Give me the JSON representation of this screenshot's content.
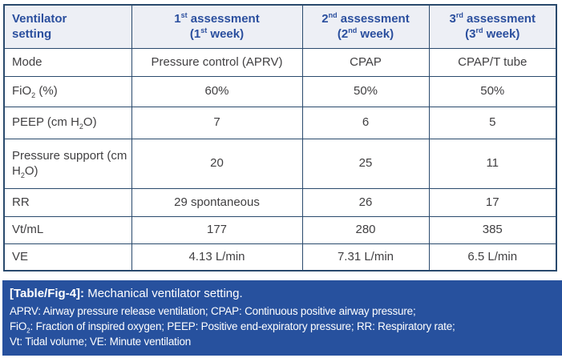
{
  "colors": {
    "border": "#2a4a6d",
    "header_bg": "#edeff5",
    "header_text": "#2b4f9e",
    "body_text": "#414042",
    "caption_bar_bg": "#27519e",
    "caption_text": "#ffffff"
  },
  "table": {
    "columns": [
      "Ventilator\nsetting",
      "1^st^ assessment\n(1^st^ week)",
      "2^nd^ assessment\n(2^nd^ week)",
      "3^rd^ assessment\n(3^rd^ week)"
    ],
    "rows": [
      {
        "label": "Mode",
        "values": [
          "Pressure control (APRV)",
          "CPAP",
          "CPAP/T tube"
        ]
      },
      {
        "label": "FiO~2~ (%)",
        "values": [
          "60%",
          "50%",
          "50%"
        ]
      },
      {
        "label": "PEEP (cm H~2~O)",
        "values": [
          "7",
          "6",
          "5"
        ]
      },
      {
        "label": "Pressure support (cm H~2~O)",
        "values": [
          "20",
          "25",
          "11"
        ]
      },
      {
        "label": "RR",
        "values": [
          "29 spontaneous",
          "26",
          "17"
        ]
      },
      {
        "label": "Vt/mL",
        "values": [
          "177",
          "280",
          "385"
        ]
      },
      {
        "label": "VE",
        "values": [
          "4.13 L/min",
          "7.31 L/min",
          "6.5 L/min"
        ]
      }
    ]
  },
  "caption": {
    "tag": "[Table/Fig-4]:",
    "text": "Mechanical ventilator setting."
  },
  "footnote": "APRV: Airway pressure release ventilation; CPAP: Continuous positive airway pressure;\nFiO~2~: Fraction of inspired oxygen; PEEP: Positive end-expiratory pressure; RR: Respiratory rate;\nVt: Tidal volume; VE: Minute ventilation"
}
